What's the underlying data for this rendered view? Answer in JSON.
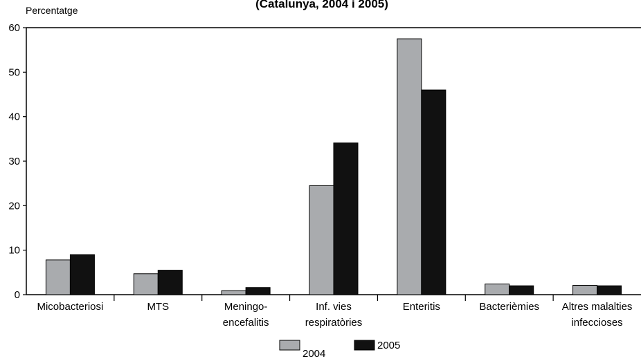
{
  "chart_data": {
    "type": "bar",
    "title": "(Catalunya, 2004 i 2005)",
    "ylabel": "Percentatge",
    "xlabel": "",
    "ylim": [
      0,
      60
    ],
    "yticks": [
      0,
      10,
      20,
      30,
      40,
      50,
      60
    ],
    "grid": false,
    "legend_position": "bottom-center",
    "categories": [
      [
        "Micobacteriosi"
      ],
      [
        "MTS"
      ],
      [
        "Meningo-",
        "encefalitis"
      ],
      [
        "Inf. vies",
        "respiratòries"
      ],
      [
        "Enteritis"
      ],
      [
        "Bacterièmies"
      ],
      [
        "Altres malalties",
        "infeccioses"
      ]
    ],
    "series": [
      {
        "name": "2004",
        "color": "#a9abae",
        "values": [
          7.8,
          4.7,
          0.9,
          24.5,
          57.5,
          2.4,
          2.1
        ]
      },
      {
        "name": "2005",
        "color": "#111111",
        "values": [
          9.0,
          5.5,
          1.6,
          34.1,
          46.0,
          2.0,
          2.0
        ]
      }
    ]
  }
}
